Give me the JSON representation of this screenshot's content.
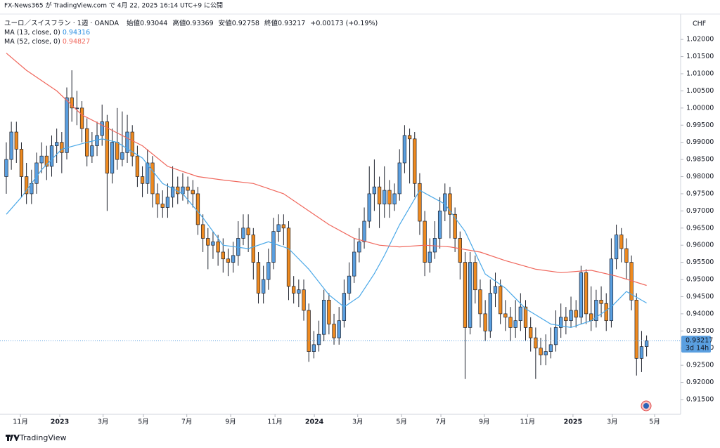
{
  "header": {
    "published": "FX-News365 が TradingView.com で 4月 22, 2025 16:14 UTC+9 に公開",
    "brand": "TradingView"
  },
  "chart_data": {
    "type": "candlestick",
    "symbol": "ユーロ／スイスフラン · 1週 · OANDA",
    "ohlc_labels": {
      "open": "始値",
      "high": "高値",
      "low": "安値",
      "close": "終値"
    },
    "change": "+0.00173 (+0.19%)",
    "currency": "CHF",
    "countdown": "3d 14h",
    "up_color": "#5a9fe0",
    "down_color": "#ef8a1f",
    "open": [
      0.98,
      0.985,
      0.993,
      0.988,
      0.98,
      0.975,
      0.978,
      0.984,
      0.986,
      0.983,
      0.989,
      0.99,
      0.987,
      1.003,
      1.0,
      1.0,
      0.994,
      0.986,
      0.989,
      0.992,
      0.996,
      0.981,
      0.99,
      0.985,
      0.987,
      0.993,
      0.986,
      0.98,
      0.978,
      0.984,
      0.975,
      0.972,
      0.971,
      0.974,
      0.977,
      0.975,
      0.977,
      0.976,
      0.975,
      0.966,
      0.962,
      0.96,
      0.961,
      0.958,
      0.956,
      0.955,
      0.957,
      0.962,
      0.965,
      0.963,
      0.955,
      0.946,
      0.95,
      0.955,
      0.964,
      0.966,
      0.965,
      0.948,
      0.946,
      0.947,
      0.941,
      0.929,
      0.931,
      0.934,
      0.944,
      0.937,
      0.933,
      0.938,
      0.946,
      0.951,
      0.958,
      0.961,
      0.967,
      0.975,
      0.977,
      0.972,
      0.976,
      0.972,
      0.975,
      0.984,
      0.992,
      0.991,
      0.978,
      0.967,
      0.955,
      0.958,
      0.962,
      0.97,
      0.975,
      0.969,
      0.962,
      0.955,
      0.936,
      0.955,
      0.947,
      0.94,
      0.935,
      0.946,
      0.948,
      0.94,
      0.939,
      0.936,
      0.938,
      0.942,
      0.936,
      0.933,
      0.93,
      0.928,
      0.929,
      0.931,
      0.936,
      0.939,
      0.938,
      0.941,
      0.939,
      0.952,
      0.94,
      0.938,
      0.944,
      0.943,
      0.938,
      0.956,
      0.963,
      0.959,
      0.955,
      0.944,
      0.927,
      0.93044
    ],
    "high": [
      0.99,
      0.996,
      0.996,
      0.99,
      0.984,
      0.982,
      0.987,
      0.99,
      0.989,
      0.992,
      0.994,
      0.993,
      1.006,
      1.011,
      1.005,
      1.002,
      0.997,
      0.993,
      0.996,
      1.001,
      0.998,
      0.994,
      1.0,
      0.999,
      0.998,
      0.995,
      0.989,
      0.983,
      0.988,
      0.986,
      0.978,
      0.976,
      0.978,
      0.983,
      0.98,
      0.981,
      0.98,
      0.979,
      0.977,
      0.969,
      0.965,
      0.964,
      0.963,
      0.962,
      0.959,
      0.961,
      0.967,
      0.969,
      0.969,
      0.965,
      0.958,
      0.954,
      0.959,
      0.968,
      0.969,
      0.969,
      0.967,
      0.951,
      0.95,
      0.95,
      0.943,
      0.935,
      0.938,
      0.947,
      0.946,
      0.94,
      0.942,
      0.95,
      0.955,
      0.962,
      0.965,
      0.971,
      0.983,
      0.985,
      0.98,
      0.983,
      0.979,
      0.978,
      0.988,
      0.995,
      0.994,
      0.993,
      0.981,
      0.97,
      0.962,
      0.967,
      0.974,
      0.978,
      0.977,
      0.971,
      0.964,
      0.958,
      0.958,
      0.957,
      0.95,
      0.944,
      0.95,
      0.952,
      0.95,
      0.944,
      0.942,
      0.944,
      0.946,
      0.944,
      0.939,
      0.936,
      0.933,
      0.934,
      0.936,
      0.941,
      0.943,
      0.942,
      0.945,
      0.944,
      0.954,
      0.953,
      0.948,
      0.947,
      0.948,
      0.946,
      0.962,
      0.966,
      0.965,
      0.962,
      0.957,
      0.946,
      0.935,
      0.93369
    ],
    "low": [
      0.975,
      0.982,
      0.984,
      0.974,
      0.972,
      0.972,
      0.975,
      0.981,
      0.979,
      0.98,
      0.984,
      0.981,
      0.985,
      0.996,
      0.995,
      0.99,
      0.983,
      0.984,
      0.986,
      0.989,
      0.97,
      0.978,
      0.982,
      0.983,
      0.984,
      0.983,
      0.977,
      0.974,
      0.975,
      0.971,
      0.968,
      0.968,
      0.968,
      0.971,
      0.972,
      0.973,
      0.972,
      0.971,
      0.963,
      0.958,
      0.953,
      0.956,
      0.954,
      0.952,
      0.951,
      0.952,
      0.954,
      0.96,
      0.958,
      0.95,
      0.943,
      0.943,
      0.947,
      0.953,
      0.961,
      0.96,
      0.944,
      0.943,
      0.942,
      0.938,
      0.926,
      0.927,
      0.929,
      0.932,
      0.934,
      0.931,
      0.931,
      0.936,
      0.944,
      0.949,
      0.955,
      0.959,
      0.965,
      0.97,
      0.965,
      0.968,
      0.968,
      0.97,
      0.973,
      0.981,
      0.978,
      0.974,
      0.963,
      0.951,
      0.952,
      0.956,
      0.959,
      0.967,
      0.962,
      0.958,
      0.95,
      0.921,
      0.934,
      0.943,
      0.936,
      0.932,
      0.933,
      0.942,
      0.937,
      0.935,
      0.932,
      0.933,
      0.935,
      0.932,
      0.929,
      0.921,
      0.925,
      0.925,
      0.927,
      0.929,
      0.933,
      0.934,
      0.936,
      0.936,
      0.937,
      0.937,
      0.935,
      0.936,
      0.939,
      0.935,
      0.936,
      0.953,
      0.955,
      0.95,
      0.941,
      0.922,
      0.923,
      0.92758
    ],
    "close": [
      0.985,
      0.993,
      0.988,
      0.98,
      0.975,
      0.978,
      0.984,
      0.986,
      0.983,
      0.989,
      0.99,
      0.987,
      1.003,
      1.0,
      1.0,
      0.994,
      0.986,
      0.989,
      0.992,
      0.996,
      0.981,
      0.99,
      0.985,
      0.987,
      0.993,
      0.986,
      0.98,
      0.978,
      0.984,
      0.975,
      0.972,
      0.971,
      0.974,
      0.977,
      0.975,
      0.977,
      0.976,
      0.975,
      0.966,
      0.962,
      0.96,
      0.961,
      0.958,
      0.956,
      0.955,
      0.957,
      0.962,
      0.965,
      0.963,
      0.955,
      0.946,
      0.95,
      0.955,
      0.964,
      0.966,
      0.965,
      0.948,
      0.946,
      0.947,
      0.941,
      0.929,
      0.931,
      0.934,
      0.944,
      0.937,
      0.933,
      0.938,
      0.946,
      0.951,
      0.958,
      0.961,
      0.967,
      0.975,
      0.977,
      0.972,
      0.976,
      0.972,
      0.975,
      0.984,
      0.992,
      0.991,
      0.978,
      0.967,
      0.955,
      0.958,
      0.962,
      0.97,
      0.975,
      0.969,
      0.962,
      0.955,
      0.936,
      0.955,
      0.947,
      0.94,
      0.935,
      0.946,
      0.948,
      0.94,
      0.939,
      0.936,
      0.938,
      0.942,
      0.936,
      0.933,
      0.93,
      0.928,
      0.929,
      0.931,
      0.936,
      0.939,
      0.938,
      0.941,
      0.939,
      0.952,
      0.94,
      0.938,
      0.944,
      0.943,
      0.938,
      0.956,
      0.963,
      0.959,
      0.955,
      0.944,
      0.927,
      0.93044,
      0.93217
    ],
    "series": [
      {
        "name": "MA (13, close, 0)",
        "color": "#4aa8e8",
        "x": [
          0,
          3,
          7,
          11,
          16,
          19,
          22,
          27,
          31,
          35,
          39,
          43,
          48,
          52,
          56,
          60,
          64,
          67,
          70,
          73,
          75,
          78,
          82,
          87,
          91,
          95,
          99,
          103,
          108,
          112,
          116,
          120,
          123,
          127
        ],
        "values": [
          0.969,
          0.974,
          0.982,
          0.988,
          0.99,
          0.991,
          0.99,
          0.9854,
          0.978,
          0.975,
          0.968,
          0.96,
          0.959,
          0.961,
          0.959,
          0.953,
          0.9455,
          0.942,
          0.945,
          0.9517,
          0.957,
          0.966,
          0.976,
          0.972,
          0.964,
          0.9516,
          0.9475,
          0.9415,
          0.937,
          0.936,
          0.938,
          0.942,
          0.9465,
          0.94316
        ]
      },
      {
        "name": "MA (52, close, 0)",
        "color": "#f0675c",
        "x": [
          0,
          4,
          10,
          15,
          21,
          27,
          32,
          38,
          43,
          49,
          55,
          60,
          64,
          69,
          74,
          78,
          83,
          88,
          94,
          99,
          105,
          110,
          116,
          121,
          127
        ],
        "values": [
          1.016,
          1.011,
          1.005,
          0.998,
          0.9935,
          0.989,
          0.983,
          0.98,
          0.979,
          0.978,
          0.975,
          0.97,
          0.966,
          0.962,
          0.96,
          0.9595,
          0.96,
          0.9595,
          0.958,
          0.9555,
          0.953,
          0.952,
          0.9527,
          0.951,
          0.94827
        ]
      }
    ],
    "xlim": [
      -1.25,
      133.75
    ],
    "ylim": [
      0.9107,
      1.0274
    ],
    "xticks": [
      {
        "value": 2.8,
        "label": "11月"
      },
      {
        "value": 10.6,
        "label": "2023"
      },
      {
        "value": 19.2,
        "label": "3月"
      },
      {
        "value": 27.2,
        "label": "5月"
      },
      {
        "value": 35.8,
        "label": "7月"
      },
      {
        "value": 44.5,
        "label": "9月"
      },
      {
        "value": 53.3,
        "label": "11月"
      },
      {
        "value": 61.1,
        "label": "2024"
      },
      {
        "value": 69.7,
        "label": "3月"
      },
      {
        "value": 78.4,
        "label": "5月"
      },
      {
        "value": 86.2,
        "label": "7月"
      },
      {
        "value": 94.8,
        "label": "9月"
      },
      {
        "value": 103.4,
        "label": "11月"
      },
      {
        "value": 112.4,
        "label": "2025"
      },
      {
        "value": 120.2,
        "label": "3月"
      },
      {
        "value": 128.6,
        "label": "5月"
      }
    ],
    "yticks": [
      {
        "value": 0.915,
        "label": "0.91500"
      },
      {
        "value": 0.92,
        "label": "0.92000"
      },
      {
        "value": 0.925,
        "label": "0.92500"
      },
      {
        "value": 0.93,
        "label": "0.93000"
      },
      {
        "value": 0.935,
        "label": "0.93500"
      },
      {
        "value": 0.94,
        "label": "0.94000"
      },
      {
        "value": 0.945,
        "label": "0.94500"
      },
      {
        "value": 0.95,
        "label": "0.95000"
      },
      {
        "value": 0.955,
        "label": "0.95500"
      },
      {
        "value": 0.96,
        "label": "0.96000"
      },
      {
        "value": 0.965,
        "label": "0.96500"
      },
      {
        "value": 0.97,
        "label": "0.97000"
      },
      {
        "value": 0.975,
        "label": "0.97500"
      },
      {
        "value": 0.98,
        "label": "0.98000"
      },
      {
        "value": 0.985,
        "label": "0.98500"
      },
      {
        "value": 0.99,
        "label": "0.99000"
      },
      {
        "value": 0.995,
        "label": "0.99500"
      },
      {
        "value": 1.0,
        "label": "1.00000"
      },
      {
        "value": 1.005,
        "label": "1.00500"
      },
      {
        "value": 1.01,
        "label": "1.01000"
      },
      {
        "value": 1.015,
        "label": "1.01500"
      },
      {
        "value": 1.02,
        "label": "1.02000"
      }
    ],
    "grid": false
  }
}
